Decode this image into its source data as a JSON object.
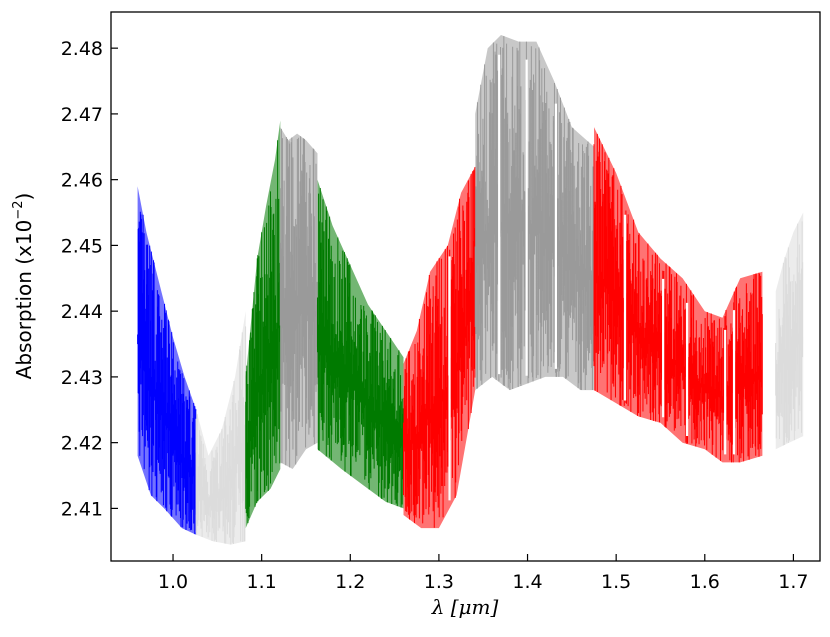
{
  "chart_data": {
    "type": "line",
    "title": "",
    "xlabel": "λ [μm]",
    "ylabel": "Absorption (x10",
    "ylabel_exponent": "−2",
    "ylabel_close": ")",
    "xlim": [
      0.93,
      1.73
    ],
    "ylim": [
      2.402,
      2.4855
    ],
    "x_ticks": [
      1.0,
      1.1,
      1.2,
      1.3,
      1.4,
      1.5,
      1.6,
      1.7
    ],
    "x_tick_labels": [
      "1.0",
      "1.1",
      "1.2",
      "1.3",
      "1.4",
      "1.5",
      "1.6",
      "1.7"
    ],
    "y_ticks": [
      2.41,
      2.42,
      2.43,
      2.44,
      2.45,
      2.46,
      2.47,
      2.48
    ],
    "y_tick_labels": [
      "2.41",
      "2.42",
      "2.43",
      "2.44",
      "2.45",
      "2.46",
      "2.47",
      "2.48"
    ],
    "grid": false,
    "legend": "none",
    "colors": {
      "blue": "#0000ff",
      "lightgray": "#dcdcdc",
      "green": "#007a00",
      "gray": "#9a9a9a",
      "red": "#ff0000"
    },
    "bands": [
      {
        "x_start": 0.96,
        "x_end": 1.026,
        "color": "blue",
        "upper": [
          [
            0.96,
            2.459
          ],
          [
            0.97,
            2.452
          ],
          [
            0.985,
            2.444
          ],
          [
            1.0,
            2.436
          ],
          [
            1.013,
            2.43
          ],
          [
            1.026,
            2.425
          ]
        ],
        "lower": [
          [
            0.96,
            2.418
          ],
          [
            0.975,
            2.412
          ],
          [
            0.99,
            2.41
          ],
          [
            1.01,
            2.407
          ],
          [
            1.026,
            2.406
          ]
        ]
      },
      {
        "x_start": 1.026,
        "x_end": 1.082,
        "color": "lightgray",
        "upper": [
          [
            1.026,
            2.425
          ],
          [
            1.04,
            2.418
          ],
          [
            1.055,
            2.422
          ],
          [
            1.07,
            2.43
          ],
          [
            1.082,
            2.44
          ]
        ],
        "lower": [
          [
            1.026,
            2.406
          ],
          [
            1.045,
            2.405
          ],
          [
            1.065,
            2.4045
          ],
          [
            1.082,
            2.405
          ]
        ]
      },
      {
        "x_start": 1.082,
        "x_end": 1.121,
        "color": "green",
        "upper": [
          [
            1.082,
            2.43
          ],
          [
            1.095,
            2.448
          ],
          [
            1.105,
            2.456
          ],
          [
            1.115,
            2.463
          ],
          [
            1.121,
            2.469
          ]
        ],
        "lower": [
          [
            1.082,
            2.407
          ],
          [
            1.095,
            2.411
          ],
          [
            1.11,
            2.413
          ],
          [
            1.121,
            2.416
          ]
        ]
      },
      {
        "x_start": 1.121,
        "x_end": 1.163,
        "color": "gray",
        "upper": [
          [
            1.121,
            2.468
          ],
          [
            1.13,
            2.466
          ],
          [
            1.14,
            2.467
          ],
          [
            1.15,
            2.466
          ],
          [
            1.163,
            2.464
          ]
        ],
        "lower": [
          [
            1.121,
            2.417
          ],
          [
            1.135,
            2.416
          ],
          [
            1.15,
            2.419
          ],
          [
            1.163,
            2.42
          ]
        ]
      },
      {
        "x_start": 1.163,
        "x_end": 1.26,
        "color": "green",
        "upper": [
          [
            1.163,
            2.46
          ],
          [
            1.18,
            2.453
          ],
          [
            1.2,
            2.447
          ],
          [
            1.22,
            2.441
          ],
          [
            1.24,
            2.437
          ],
          [
            1.26,
            2.433
          ]
        ],
        "lower": [
          [
            1.163,
            2.419
          ],
          [
            1.19,
            2.416
          ],
          [
            1.22,
            2.413
          ],
          [
            1.24,
            2.411
          ],
          [
            1.26,
            2.41
          ]
        ]
      },
      {
        "x_start": 1.26,
        "x_end": 1.341,
        "color": "red",
        "upper": [
          [
            1.26,
            2.432
          ],
          [
            1.275,
            2.437
          ],
          [
            1.29,
            2.446
          ],
          [
            1.31,
            2.45
          ],
          [
            1.325,
            2.458
          ],
          [
            1.341,
            2.462
          ]
        ],
        "lower": [
          [
            1.26,
            2.409
          ],
          [
            1.28,
            2.407
          ],
          [
            1.3,
            2.407
          ],
          [
            1.32,
            2.412
          ],
          [
            1.341,
            2.428
          ]
        ]
      },
      {
        "x_start": 1.341,
        "x_end": 1.475,
        "color": "gray",
        "upper": [
          [
            1.341,
            2.47
          ],
          [
            1.355,
            2.48
          ],
          [
            1.37,
            2.482
          ],
          [
            1.39,
            2.481
          ],
          [
            1.41,
            2.481
          ],
          [
            1.43,
            2.475
          ],
          [
            1.45,
            2.468
          ],
          [
            1.475,
            2.465
          ]
        ],
        "lower": [
          [
            1.341,
            2.428
          ],
          [
            1.36,
            2.43
          ],
          [
            1.38,
            2.428
          ],
          [
            1.4,
            2.429
          ],
          [
            1.42,
            2.43
          ],
          [
            1.44,
            2.43
          ],
          [
            1.46,
            2.428
          ],
          [
            1.475,
            2.428
          ]
        ]
      },
      {
        "x_start": 1.475,
        "x_end": 1.665,
        "color": "red",
        "upper": [
          [
            1.475,
            2.468
          ],
          [
            1.5,
            2.461
          ],
          [
            1.525,
            2.452
          ],
          [
            1.55,
            2.448
          ],
          [
            1.575,
            2.445
          ],
          [
            1.6,
            2.44
          ],
          [
            1.62,
            2.439
          ],
          [
            1.64,
            2.445
          ],
          [
            1.665,
            2.446
          ]
        ],
        "lower": [
          [
            1.475,
            2.428
          ],
          [
            1.5,
            2.426
          ],
          [
            1.525,
            2.424
          ],
          [
            1.55,
            2.423
          ],
          [
            1.575,
            2.42
          ],
          [
            1.6,
            2.419
          ],
          [
            1.62,
            2.417
          ],
          [
            1.64,
            2.417
          ],
          [
            1.665,
            2.418
          ]
        ]
      },
      {
        "x_start": 1.68,
        "x_end": 1.711,
        "color": "lightgray",
        "upper": [
          [
            1.68,
            2.443
          ],
          [
            1.69,
            2.448
          ],
          [
            1.7,
            2.452
          ],
          [
            1.711,
            2.455
          ]
        ],
        "lower": [
          [
            1.68,
            2.419
          ],
          [
            1.695,
            2.42
          ],
          [
            1.711,
            2.421
          ]
        ]
      }
    ],
    "gaps": [
      1.312,
      1.368,
      1.399,
      1.432,
      1.51,
      1.553,
      1.58,
      1.623,
      1.633
    ]
  }
}
